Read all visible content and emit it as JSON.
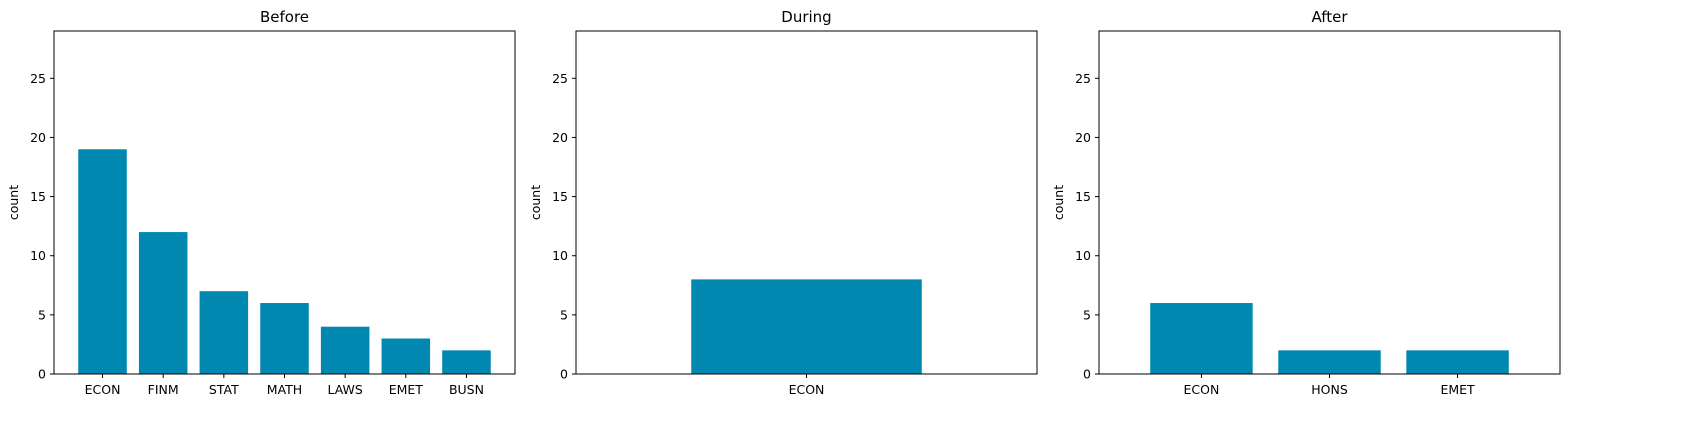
{
  "chart_data": [
    {
      "type": "bar",
      "title": "Before",
      "xlabel": "",
      "ylabel": "count",
      "ylim": [
        0,
        29
      ],
      "yticks": [
        0,
        5,
        10,
        15,
        20,
        25
      ],
      "grid": false,
      "categories": [
        "ECON",
        "FINM",
        "STAT",
        "MATH",
        "LAWS",
        "EMET",
        "BUSN"
      ],
      "values": [
        19,
        12,
        7,
        6,
        4,
        3,
        2
      ]
    },
    {
      "type": "bar",
      "title": "During",
      "xlabel": "",
      "ylabel": "count",
      "ylim": [
        0,
        29
      ],
      "yticks": [
        0,
        5,
        10,
        15,
        20,
        25
      ],
      "grid": false,
      "categories": [
        "ECON"
      ],
      "values": [
        8
      ]
    },
    {
      "type": "bar",
      "title": "After",
      "xlabel": "",
      "ylabel": "count",
      "ylim": [
        0,
        29
      ],
      "yticks": [
        0,
        5,
        10,
        15,
        20,
        25
      ],
      "grid": false,
      "categories": [
        "ECON",
        "HONS",
        "EMET"
      ],
      "values": [
        6,
        2,
        2
      ]
    }
  ],
  "colors": {
    "bar": "#0088b0",
    "axis": "#000000",
    "background": "#ffffff"
  }
}
